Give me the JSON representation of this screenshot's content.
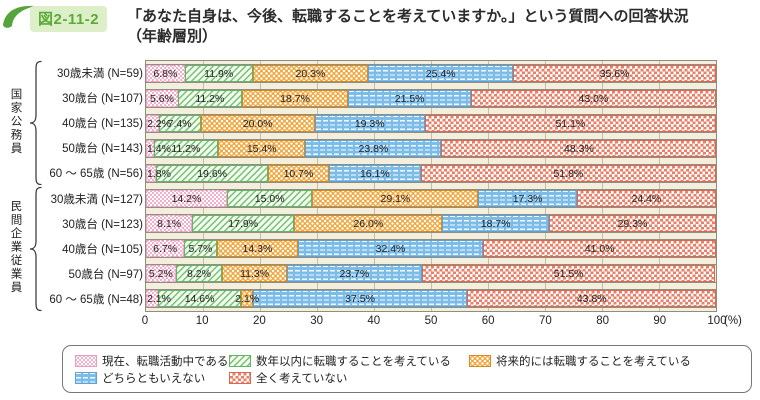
{
  "figure": {
    "badge": "図2-11-2",
    "title_line1": "「あなた自身は、今後、転職することを考えていますか。」という質問への回答状況",
    "title_line2": "（年齢層別）"
  },
  "colors": {
    "badge_bg": "#dcefc8",
    "badge_text": "#5cab39",
    "swoosh_green": "#55a43c",
    "plot_bg": "#f4efdc",
    "series_pink": "#f2a6c4",
    "series_green": "#74c274",
    "series_orange": "#f4a53b",
    "series_blue": "#7cbce9",
    "series_red": "#e97f66"
  },
  "chart_data": {
    "type": "bar",
    "orientation": "horizontal",
    "stacked": true,
    "unit": "%",
    "xlim": [
      0,
      100
    ],
    "x_ticks": [
      0,
      10,
      20,
      30,
      40,
      50,
      60,
      70,
      80,
      90,
      100
    ],
    "x_unit": "(%)",
    "legend_position": "bottom",
    "value_label_format": "one-decimal-percent",
    "series": [
      {
        "name": "現在、転職活動中である",
        "pattern": "pink-dots"
      },
      {
        "name": "数年以内に転職することを考えている",
        "pattern": "green-hatch"
      },
      {
        "name": "将来的には転職することを考えている",
        "pattern": "orange-dots"
      },
      {
        "name": "どちらともいえない",
        "pattern": "blue-lines"
      },
      {
        "name": "全く考えていない",
        "pattern": "red-checker"
      }
    ],
    "groups": [
      {
        "name": "国家公務員",
        "rows": [
          {
            "label": "30歳未満 (N=59)",
            "values": [
              6.8,
              11.9,
              20.3,
              25.4,
              35.6
            ]
          },
          {
            "label": "30歳台 (N=107)",
            "values": [
              5.6,
              11.2,
              18.7,
              21.5,
              43.0
            ]
          },
          {
            "label": "40歳台 (N=135)",
            "values": [
              2.2,
              7.4,
              20.0,
              19.3,
              51.1
            ]
          },
          {
            "label": "50歳台 (N=143)",
            "values": [
              1.4,
              11.2,
              15.4,
              23.8,
              48.3
            ]
          },
          {
            "label": "60 ～ 65歳 (N=56)",
            "values": [
              1.8,
              19.6,
              10.7,
              16.1,
              51.8
            ]
          }
        ]
      },
      {
        "name": "民間企業従業員",
        "rows": [
          {
            "label": "30歳未満 (N=127)",
            "values": [
              14.2,
              15.0,
              29.1,
              17.3,
              24.4
            ]
          },
          {
            "label": "30歳台 (N=123)",
            "values": [
              8.1,
              17.9,
              26.0,
              18.7,
              29.3
            ]
          },
          {
            "label": "40歳台 (N=105)",
            "values": [
              6.7,
              5.7,
              14.3,
              32.4,
              41.0
            ]
          },
          {
            "label": "50歳台 (N=97)",
            "values": [
              5.2,
              8.2,
              11.3,
              23.7,
              51.5
            ]
          },
          {
            "label": "60 ～ 65歳 (N=48)",
            "values": [
              2.1,
              14.6,
              2.1,
              37.5,
              43.8
            ]
          }
        ]
      }
    ]
  }
}
